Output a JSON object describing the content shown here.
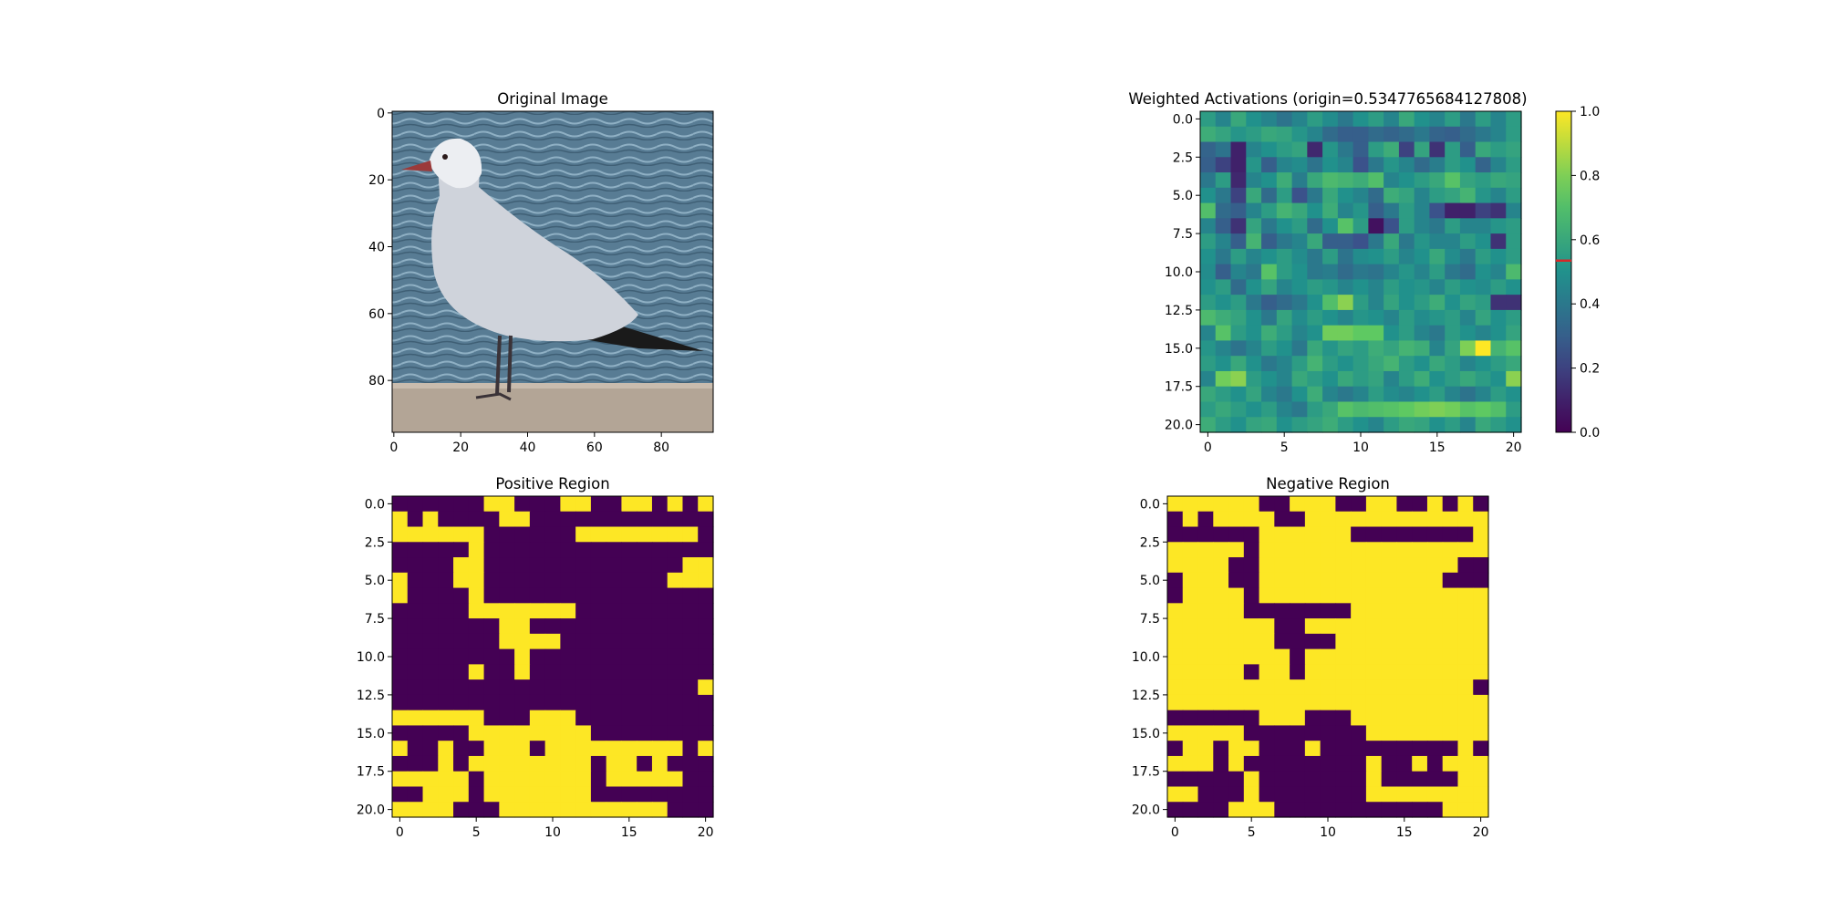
{
  "charts": [
    {
      "id": "original",
      "type": "image",
      "title": "Original Image",
      "x_ticks": [
        "0",
        "20",
        "40",
        "60",
        "80"
      ],
      "y_ticks": [
        "0",
        "20",
        "40",
        "60",
        "80"
      ],
      "image_content": "seagull on sea wall"
    },
    {
      "id": "weighted",
      "type": "heatmap",
      "title": "Weighted Activations (origin=0.5347765684127808)",
      "x_ticks": [
        "0",
        "5",
        "10",
        "15",
        "20"
      ],
      "y_ticks": [
        "0.0",
        "2.5",
        "5.0",
        "7.5",
        "10.0",
        "12.5",
        "15.0",
        "17.5",
        "20.0"
      ],
      "colorbar_ticks": [
        "0.0",
        "0.2",
        "0.4",
        "0.6",
        "0.8",
        "1.0"
      ],
      "colorbar_marker": 0.5347765684127808,
      "colormap": "viridis"
    },
    {
      "id": "positive",
      "type": "heatmap",
      "title": "Positive Region",
      "x_ticks": [
        "0",
        "5",
        "10",
        "15",
        "20"
      ],
      "y_ticks": [
        "0.0",
        "2.5",
        "5.0",
        "7.5",
        "10.0",
        "12.5",
        "15.0",
        "17.5",
        "20.0"
      ]
    },
    {
      "id": "negative",
      "type": "heatmap",
      "title": "Negative Region",
      "x_ticks": [
        "0",
        "5",
        "10",
        "15",
        "20"
      ],
      "y_ticks": [
        "0.0",
        "2.5",
        "5.0",
        "7.5",
        "10.0",
        "12.5",
        "15.0",
        "17.5",
        "20.0"
      ]
    }
  ],
  "chart_data": [
    {
      "type": "heatmap",
      "title": "Weighted Activations (origin=0.5347765684127808)",
      "rows": 21,
      "cols": 21,
      "xlim": [
        -0.5,
        20.5
      ],
      "ylim": [
        20.5,
        -0.5
      ],
      "zlim": [
        0.0,
        1.0
      ],
      "values": [
        [
          0.55,
          0.45,
          0.6,
          0.5,
          0.45,
          0.38,
          0.45,
          0.55,
          0.48,
          0.4,
          0.5,
          0.55,
          0.45,
          0.6,
          0.5,
          0.45,
          0.55,
          0.4,
          0.55,
          0.45,
          0.55
        ],
        [
          0.62,
          0.58,
          0.52,
          0.55,
          0.6,
          0.58,
          0.52,
          0.45,
          0.35,
          0.3,
          0.3,
          0.35,
          0.32,
          0.35,
          0.4,
          0.32,
          0.3,
          0.35,
          0.4,
          0.45,
          0.55
        ],
        [
          0.32,
          0.38,
          0.1,
          0.45,
          0.5,
          0.55,
          0.58,
          0.12,
          0.52,
          0.4,
          0.3,
          0.55,
          0.62,
          0.2,
          0.58,
          0.15,
          0.55,
          0.3,
          0.6,
          0.55,
          0.58
        ],
        [
          0.3,
          0.2,
          0.1,
          0.52,
          0.3,
          0.45,
          0.48,
          0.38,
          0.5,
          0.45,
          0.25,
          0.4,
          0.52,
          0.45,
          0.35,
          0.42,
          0.55,
          0.5,
          0.32,
          0.45,
          0.55
        ],
        [
          0.4,
          0.55,
          0.12,
          0.45,
          0.5,
          0.62,
          0.42,
          0.6,
          0.68,
          0.65,
          0.62,
          0.7,
          0.45,
          0.5,
          0.55,
          0.6,
          0.72,
          0.58,
          0.55,
          0.6,
          0.58
        ],
        [
          0.5,
          0.4,
          0.2,
          0.6,
          0.35,
          0.55,
          0.25,
          0.4,
          0.6,
          0.5,
          0.45,
          0.35,
          0.62,
          0.58,
          0.45,
          0.55,
          0.58,
          0.65,
          0.52,
          0.45,
          0.55
        ],
        [
          0.7,
          0.35,
          0.3,
          0.45,
          0.55,
          0.65,
          0.6,
          0.5,
          0.62,
          0.45,
          0.52,
          0.3,
          0.4,
          0.55,
          0.45,
          0.25,
          0.1,
          0.1,
          0.2,
          0.15,
          0.45
        ],
        [
          0.45,
          0.3,
          0.15,
          0.58,
          0.4,
          0.5,
          0.55,
          0.35,
          0.5,
          0.72,
          0.55,
          0.05,
          0.25,
          0.55,
          0.45,
          0.4,
          0.55,
          0.45,
          0.45,
          0.52,
          0.55
        ],
        [
          0.55,
          0.45,
          0.3,
          0.65,
          0.3,
          0.4,
          0.45,
          0.6,
          0.3,
          0.3,
          0.25,
          0.4,
          0.6,
          0.4,
          0.52,
          0.45,
          0.45,
          0.55,
          0.5,
          0.15,
          0.55
        ],
        [
          0.5,
          0.4,
          0.55,
          0.45,
          0.5,
          0.55,
          0.48,
          0.4,
          0.55,
          0.38,
          0.48,
          0.5,
          0.55,
          0.45,
          0.5,
          0.6,
          0.48,
          0.4,
          0.55,
          0.5,
          0.55
        ],
        [
          0.48,
          0.3,
          0.45,
          0.4,
          0.72,
          0.55,
          0.5,
          0.4,
          0.42,
          0.35,
          0.4,
          0.38,
          0.45,
          0.52,
          0.45,
          0.55,
          0.4,
          0.35,
          0.5,
          0.45,
          0.68
        ],
        [
          0.5,
          0.55,
          0.35,
          0.5,
          0.58,
          0.45,
          0.5,
          0.55,
          0.52,
          0.45,
          0.5,
          0.45,
          0.55,
          0.5,
          0.52,
          0.45,
          0.55,
          0.5,
          0.48,
          0.55,
          0.5
        ],
        [
          0.55,
          0.5,
          0.55,
          0.4,
          0.3,
          0.35,
          0.4,
          0.5,
          0.7,
          0.82,
          0.55,
          0.45,
          0.58,
          0.5,
          0.55,
          0.62,
          0.5,
          0.58,
          0.55,
          0.15,
          0.15
        ],
        [
          0.68,
          0.62,
          0.58,
          0.5,
          0.4,
          0.58,
          0.48,
          0.55,
          0.5,
          0.45,
          0.52,
          0.5,
          0.45,
          0.55,
          0.48,
          0.52,
          0.55,
          0.45,
          0.58,
          0.5,
          0.55
        ],
        [
          0.45,
          0.72,
          0.55,
          0.5,
          0.62,
          0.55,
          0.45,
          0.5,
          0.78,
          0.78,
          0.75,
          0.75,
          0.5,
          0.55,
          0.45,
          0.4,
          0.55,
          0.5,
          0.45,
          0.5,
          0.58
        ],
        [
          0.52,
          0.45,
          0.38,
          0.45,
          0.55,
          0.5,
          0.4,
          0.6,
          0.52,
          0.58,
          0.55,
          0.62,
          0.58,
          0.65,
          0.62,
          0.45,
          0.58,
          0.8,
          1.0,
          0.65,
          0.72
        ],
        [
          0.55,
          0.5,
          0.6,
          0.5,
          0.4,
          0.45,
          0.55,
          0.65,
          0.55,
          0.5,
          0.55,
          0.6,
          0.65,
          0.55,
          0.5,
          0.6,
          0.55,
          0.45,
          0.5,
          0.55,
          0.6
        ],
        [
          0.45,
          0.78,
          0.82,
          0.55,
          0.5,
          0.45,
          0.6,
          0.55,
          0.5,
          0.6,
          0.55,
          0.58,
          0.45,
          0.55,
          0.62,
          0.5,
          0.55,
          0.6,
          0.55,
          0.5,
          0.82
        ],
        [
          0.6,
          0.55,
          0.5,
          0.58,
          0.45,
          0.4,
          0.5,
          0.62,
          0.45,
          0.4,
          0.45,
          0.55,
          0.48,
          0.45,
          0.5,
          0.55,
          0.45,
          0.38,
          0.45,
          0.55,
          0.5
        ],
        [
          0.55,
          0.6,
          0.55,
          0.5,
          0.55,
          0.45,
          0.4,
          0.55,
          0.6,
          0.72,
          0.68,
          0.7,
          0.72,
          0.75,
          0.78,
          0.8,
          0.78,
          0.72,
          0.75,
          0.7,
          0.55
        ],
        [
          0.62,
          0.55,
          0.5,
          0.58,
          0.6,
          0.5,
          0.55,
          0.58,
          0.62,
          0.55,
          0.5,
          0.45,
          0.55,
          0.6,
          0.58,
          0.5,
          0.55,
          0.45,
          0.6,
          0.55,
          0.5
        ]
      ]
    },
    {
      "type": "heatmap",
      "title": "Positive Region",
      "rows": 21,
      "cols": 21,
      "xlim": [
        -0.5,
        20.5
      ],
      "ylim": [
        20.5,
        -0.5
      ],
      "values": [
        "000000110001100110101",
        "101000011000000000000",
        "111111000000111111110",
        "000001000000000000000",
        "000011000000000000011",
        "100011000000000000111",
        "100001000000000000000",
        "000001111111000000000",
        "000000011000000000000",
        "000000011110000000000",
        "000000001000000000000",
        "000001001000000000000",
        "000000000000000000001",
        "000000000000000000000",
        "111111000111000000000",
        "000001111111100000000",
        "100100111011111111101",
        "000101111111101101000",
        "111110111111101111100",
        "001110111111100000000",
        "111100011111111111000"
      ]
    },
    {
      "type": "heatmap",
      "title": "Negative Region",
      "rows": 21,
      "cols": 21,
      "xlim": [
        -0.5,
        20.5
      ],
      "ylim": [
        20.5,
        -0.5
      ],
      "values": [
        "111111001110011001010",
        "010111100111111111111",
        "000000111111000000001",
        "111110111111111111111",
        "111100111111111111100",
        "011100111111111111000",
        "011110111111111111111",
        "111110000000111111111",
        "111111100111111111111",
        "111111100001111111111",
        "111111110111111111111",
        "111110110111111111111",
        "111111111111111111110",
        "111111111111111111111",
        "000000111000111111111",
        "111110000000011111111",
        "011011000100000000010",
        "111010000000010010111",
        "000001000000010000011",
        "110001000000011111111",
        "000011100000000000111"
      ]
    }
  ]
}
